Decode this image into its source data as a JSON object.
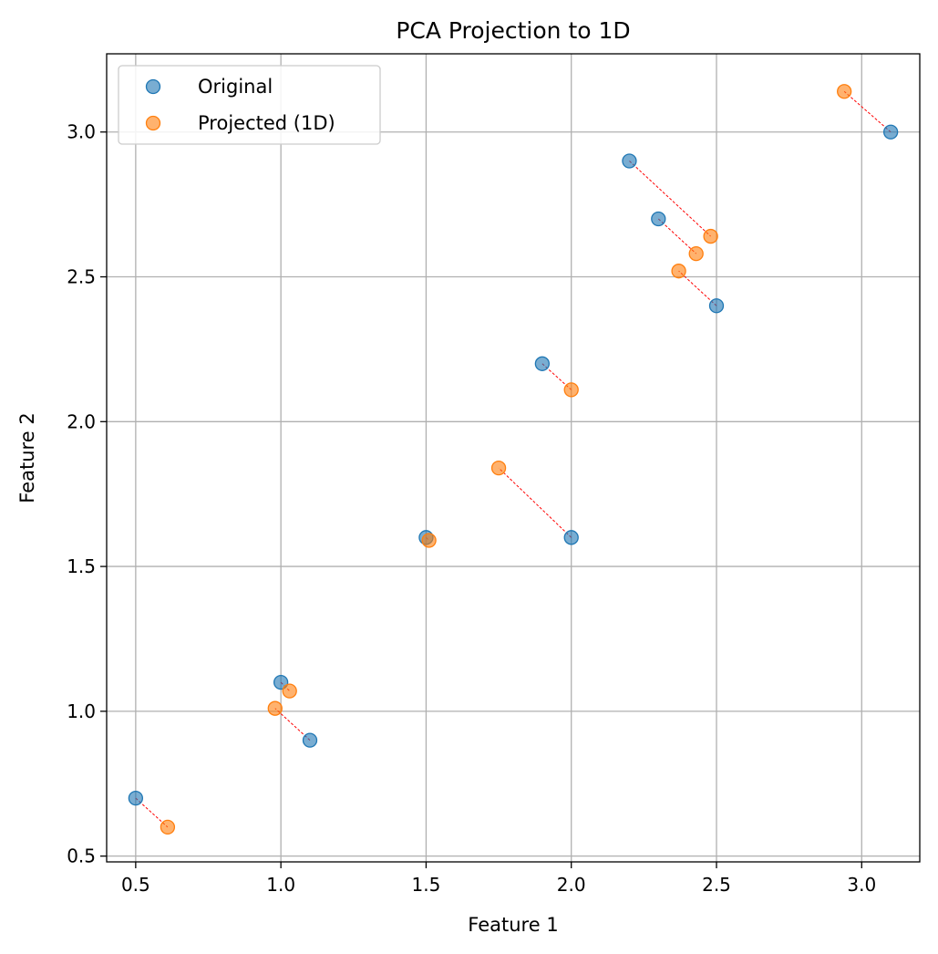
{
  "chart_data": {
    "type": "scatter",
    "title": "PCA Projection to 1D",
    "xlabel": "Feature 1",
    "ylabel": "Feature 2",
    "xlim": [
      0.4,
      3.2
    ],
    "ylim": [
      0.48,
      3.27
    ],
    "xticks": [
      0.5,
      1.0,
      1.5,
      2.0,
      2.5,
      3.0
    ],
    "xtick_labels": [
      "0.5",
      "1.0",
      "1.5",
      "2.0",
      "2.5",
      "3.0"
    ],
    "yticks": [
      0.5,
      1.0,
      1.5,
      2.0,
      2.5,
      3.0
    ],
    "ytick_labels": [
      "0.5",
      "1.0",
      "1.5",
      "2.0",
      "2.5",
      "3.0"
    ],
    "grid": true,
    "legend_position": "top-left",
    "series": [
      {
        "name": "Original",
        "color": "#1f77b4",
        "points": [
          [
            2.5,
            2.4
          ],
          [
            0.5,
            0.7
          ],
          [
            2.2,
            2.9
          ],
          [
            1.9,
            2.2
          ],
          [
            3.1,
            3.0
          ],
          [
            2.3,
            2.7
          ],
          [
            2.0,
            1.6
          ],
          [
            1.0,
            1.1
          ],
          [
            1.5,
            1.6
          ],
          [
            1.1,
            0.9
          ]
        ]
      },
      {
        "name": "Projected (1D)",
        "color": "#ff7f0e",
        "points": [
          [
            2.37,
            2.52
          ],
          [
            0.61,
            0.6
          ],
          [
            2.48,
            2.64
          ],
          [
            2.0,
            2.11
          ],
          [
            2.94,
            3.14
          ],
          [
            2.43,
            2.58
          ],
          [
            1.75,
            1.84
          ],
          [
            1.03,
            1.07
          ],
          [
            1.51,
            1.59
          ],
          [
            0.98,
            1.01
          ]
        ]
      }
    ],
    "connector_color": "#ff0000"
  }
}
